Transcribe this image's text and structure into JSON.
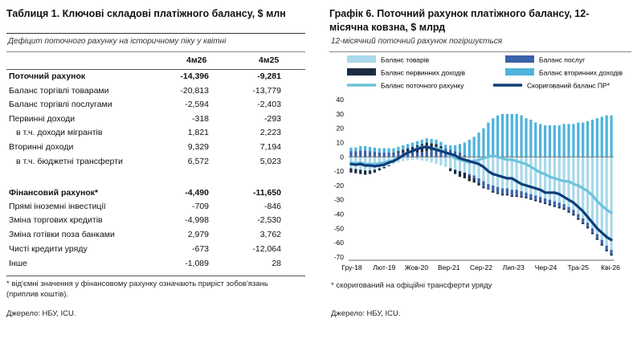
{
  "table": {
    "title": "Таблиця 1. Ключові складові платіжного балансу, $ млн",
    "subtitle": "Дефіцит поточного рахунку на історичному піку у квітні",
    "col1": "4м26",
    "col2": "4м25",
    "rows": [
      {
        "label": "Поточний рахунок",
        "v1": "-14,396",
        "v2": "-9,281",
        "bold": true,
        "indent": false
      },
      {
        "label": "Баланс торгівлі товарами",
        "v1": "-20,813",
        "v2": "-13,779",
        "bold": false,
        "indent": false
      },
      {
        "label": "Баланс торгівлі послугами",
        "v1": "-2,594",
        "v2": "-2,403",
        "bold": false,
        "indent": false
      },
      {
        "label": "Первинні доходи",
        "v1": "-318",
        "v2": "-293",
        "bold": false,
        "indent": false
      },
      {
        "label": "в т.ч. доходи мігрантів",
        "v1": "1,821",
        "v2": "2,223",
        "bold": false,
        "indent": true
      },
      {
        "label": "Вторинні доходи",
        "v1": "9,329",
        "v2": "7,194",
        "bold": false,
        "indent": false
      },
      {
        "label": "в т.ч. бюджетні трансферти",
        "v1": "6,572",
        "v2": "5,023",
        "bold": false,
        "indent": true
      },
      {
        "label": "Фінансовий рахунок*",
        "v1": "-4,490",
        "v2": "-11,650",
        "bold": true,
        "indent": false
      },
      {
        "label": "Прямі іноземні інвестиції",
        "v1": "-709",
        "v2": "-846",
        "bold": false,
        "indent": false
      },
      {
        "label": "Зміна торгових кредитів",
        "v1": "-4,998",
        "v2": "-2,530",
        "bold": false,
        "indent": false
      },
      {
        "label": "Зміна готівки поза банками",
        "v1": "2,979",
        "v2": "3,762",
        "bold": false,
        "indent": false
      },
      {
        "label": "Чисті кредити уряду",
        "v1": "-673",
        "v2": "-12,064",
        "bold": false,
        "indent": false
      },
      {
        "label": "Інше",
        "v1": "-1,089",
        "v2": "28",
        "bold": false,
        "indent": false
      }
    ],
    "footnote": "* від'ємні значення у фінансовому рахунку означають приріст зобов'язань (приплив коштів).",
    "source": "Джерело: НБУ, ICU."
  },
  "chart_panel": {
    "title": "Графік 6. Поточний рахунок платіжного балансу, 12-місячна ковзна, $ млрд",
    "subtitle": "12-місячний поточний рахунок погіршується",
    "footnote": "* скоригований на офіційні трансферти уряду",
    "source": "Джерело: НБУ, ICU."
  },
  "chart_data": {
    "type": "bar",
    "title": "Графік 6. Поточний рахунок платіжного балансу, 12-місячна ковзна, $ млрд",
    "xlabel": "",
    "ylabel": "",
    "ylim": [
      -70,
      40
    ],
    "yticks": [
      40,
      30,
      20,
      10,
      0,
      -10,
      -20,
      -30,
      -40,
      -50,
      -60,
      -70
    ],
    "x_tick_labels": [
      "Гру-18",
      "Лют-19",
      "Жов-20",
      "Вер-21",
      "Сер-22",
      "Лип-23",
      "Чер-24",
      "Тра-25",
      "Кві-26"
    ],
    "grid": false,
    "legend": "top",
    "colors": {
      "goods": "#a9d9ea",
      "services": "#3a63a8",
      "primary": "#1c2b44",
      "secondary": "#4fb3dc",
      "current": "#6cc3da",
      "adjusted": "#0d3d78"
    },
    "series": [
      {
        "name": "Баланс товарів",
        "type": "bar",
        "values": [
          -8,
          -8.5,
          -9,
          -9.5,
          -9.5,
          -9,
          -8,
          -7,
          -6,
          -5,
          -4,
          -3,
          -2.5,
          -2,
          -2,
          -2.5,
          -3,
          -4,
          -5,
          -6,
          -7,
          -8,
          -9,
          -10,
          -11,
          -12,
          -13,
          -15,
          -17,
          -19,
          -20,
          -21,
          -22,
          -22,
          -23,
          -23,
          -24,
          -25,
          -26,
          -27,
          -28,
          -29,
          -30,
          -31,
          -32,
          -33,
          -35,
          -37,
          -40,
          -43,
          -46,
          -50,
          -54,
          -58,
          -62,
          -65
        ]
      },
      {
        "name": "Баланс послуг",
        "type": "bar",
        "values": [
          4,
          4,
          4.5,
          4.5,
          4,
          3.5,
          3,
          3,
          3,
          3,
          3,
          3,
          3,
          3,
          3,
          3.5,
          4,
          4.5,
          5,
          5.5,
          5.5,
          5,
          4,
          3,
          1,
          -1,
          -2,
          -3,
          -4,
          -4,
          -4,
          -4,
          -4,
          -4,
          -4,
          -4,
          -3.5,
          -3,
          -3,
          -3,
          -3,
          -3,
          -3,
          -3,
          -3,
          -3,
          -3,
          -3,
          -3,
          -3,
          -3,
          -3,
          -3,
          -3,
          -3,
          -3
        ]
      },
      {
        "name": "Баланс первинних доходів",
        "type": "bar",
        "values": [
          -3,
          -3,
          -3,
          -3,
          -2.5,
          -2,
          -1.5,
          -1,
          -0.5,
          0,
          1,
          2,
          3,
          4,
          5,
          5.5,
          6,
          5,
          4,
          2,
          0,
          -2,
          -3,
          -4,
          -4,
          -4,
          -3,
          -2,
          -1,
          0,
          -1,
          -1,
          -1,
          -1,
          -1,
          -1,
          -1,
          -1,
          -1,
          -1,
          -1,
          -1,
          -1,
          -1,
          -1,
          -1,
          -1,
          -1,
          -1,
          -1,
          -1,
          -1,
          -1,
          -1,
          -1,
          -1
        ]
      },
      {
        "name": "Баланс вторинних доходів",
        "type": "bar",
        "values": [
          2.5,
          2.5,
          3,
          3,
          3,
          3,
          3,
          3,
          3,
          3,
          3,
          3,
          3,
          3,
          3,
          3,
          3,
          3,
          3,
          3,
          3,
          3,
          4,
          6,
          9,
          12,
          14,
          17,
          20,
          24,
          27,
          29,
          30,
          30,
          30,
          30,
          29,
          27,
          26,
          24,
          23,
          22,
          22,
          22,
          22,
          23,
          23,
          23,
          24,
          24,
          25,
          26,
          27,
          28,
          29,
          29
        ]
      },
      {
        "name": "Баланс поточного рахунку",
        "type": "line",
        "values": [
          -4,
          -4.5,
          -4,
          -5,
          -5,
          -5,
          -4.5,
          -4,
          -3,
          -2.5,
          -1,
          1,
          3,
          4,
          6,
          7,
          7,
          6,
          6,
          5,
          3,
          1,
          -1,
          -2,
          -3,
          -4,
          -3,
          -2,
          -1,
          0,
          1,
          0,
          -1,
          -2,
          -2,
          -3,
          -4,
          -5,
          -7,
          -9,
          -11,
          -12,
          -14,
          -15,
          -16,
          -17,
          -17,
          -19,
          -20,
          -22,
          -24,
          -27,
          -31,
          -34,
          -37,
          -39
        ]
      },
      {
        "name": "Скоригований баланс ПР*",
        "type": "line",
        "values": [
          -5,
          -5.5,
          -5,
          -6,
          -6,
          -6.5,
          -6,
          -5.5,
          -4,
          -3,
          -1,
          1,
          3,
          4,
          5.5,
          6.5,
          7,
          6,
          5,
          4,
          3,
          2,
          1,
          -1,
          -2,
          -3,
          -4,
          -5,
          -7,
          -10,
          -12,
          -13,
          -14,
          -15,
          -15,
          -17,
          -19,
          -20,
          -21,
          -22,
          -23,
          -25,
          -25,
          -25,
          -26,
          -28,
          -30,
          -32,
          -35,
          -38,
          -42,
          -46,
          -50,
          -53,
          -56,
          -58
        ]
      }
    ]
  }
}
